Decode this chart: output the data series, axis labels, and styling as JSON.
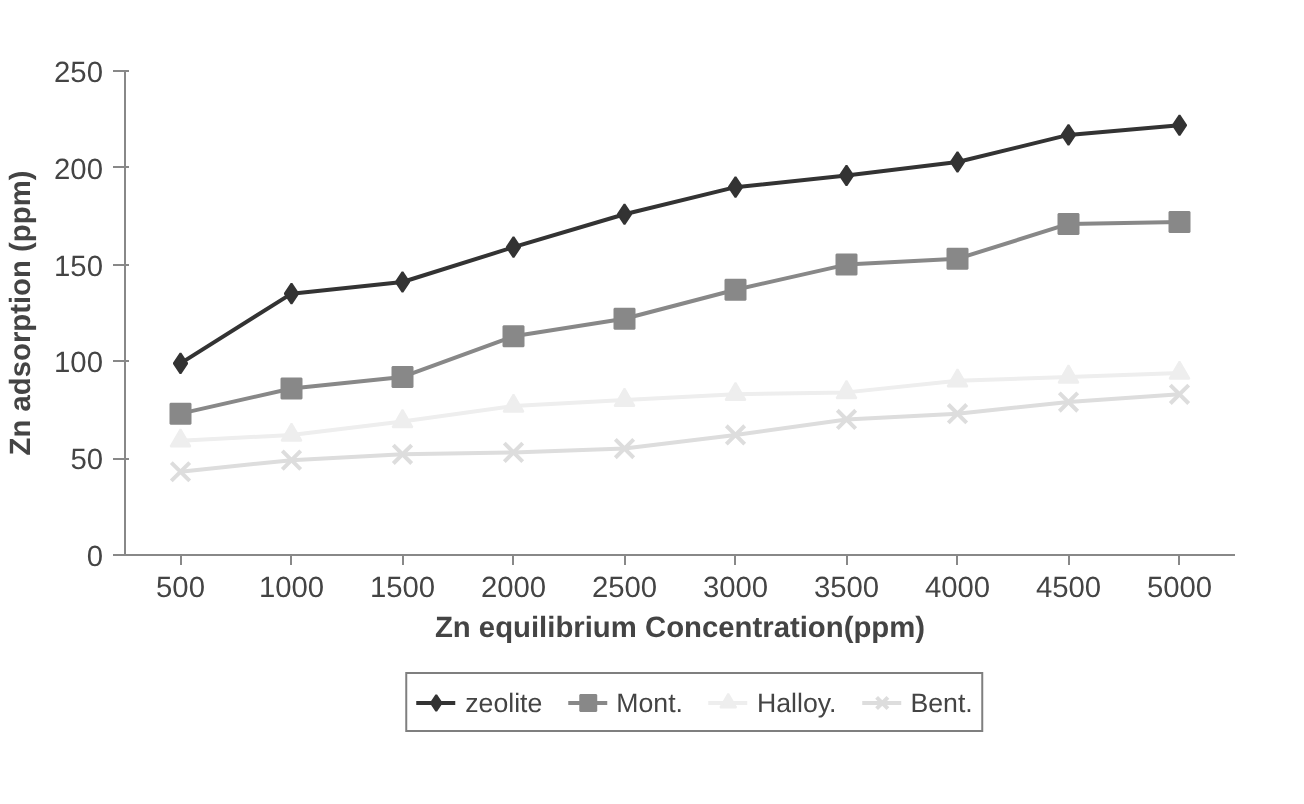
{
  "chart_data": {
    "type": "line",
    "xlabel": "Zn equilibrium Concentration(ppm)",
    "ylabel": "Zn adsorption (ppm)",
    "categories": [
      "500",
      "1000",
      "1500",
      "2000",
      "2500",
      "3000",
      "3500",
      "4000",
      "4500",
      "5000"
    ],
    "ylim": [
      0,
      250
    ],
    "yticks": [
      0,
      50,
      100,
      150,
      200,
      250
    ],
    "grid": false,
    "legend": "bottom",
    "series": [
      {
        "name": "zeolite",
        "color": "#333333",
        "marker": "diamond",
        "values": [
          99,
          135,
          141,
          159,
          176,
          190,
          196,
          203,
          217,
          222
        ]
      },
      {
        "name": "Mont.",
        "color": "#888888",
        "marker": "square",
        "values": [
          73,
          86,
          92,
          113,
          122,
          137,
          150,
          153,
          171,
          172
        ]
      },
      {
        "name": "Halloy.",
        "color": "#eeeeee",
        "marker": "triangle",
        "values": [
          59,
          62,
          69,
          77,
          80,
          83,
          84,
          90,
          92,
          94
        ]
      },
      {
        "name": "Bent.",
        "color": "#dddddd",
        "marker": "cross",
        "values": [
          43,
          49,
          52,
          53,
          55,
          62,
          70,
          73,
          79,
          83
        ]
      }
    ]
  }
}
